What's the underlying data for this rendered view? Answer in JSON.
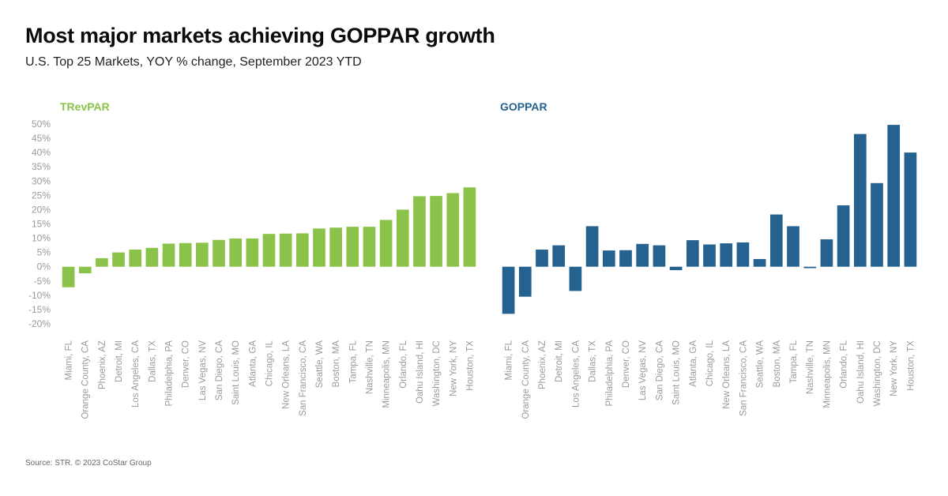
{
  "header": {
    "title": "Most major markets achieving GOPPAR growth",
    "subtitle": "U.S. Top 25 Markets, YOY % change, September 2023 YTD"
  },
  "footer": {
    "source": "Source: STR. © 2023 CoStar Group"
  },
  "colors": {
    "trevpar": "#8bc34a",
    "goppar": "#25628f",
    "axis_text": "#9a9a9a"
  },
  "chart_data": [
    {
      "type": "bar",
      "title": "TRevPAR",
      "ylim": [
        -20,
        50
      ],
      "yticks": [
        "50%",
        "45%",
        "40%",
        "35%",
        "30%",
        "25%",
        "20%",
        "15%",
        "10%",
        "5%",
        "0%",
        "-5%",
        "-10%",
        "-15%",
        "-20%"
      ],
      "grid": false,
      "categories": [
        "Miami, FL",
        "Orange County, CA",
        "Phoenix, AZ",
        "Detroit, MI",
        "Los Angeles, CA",
        "Dallas, TX",
        "Philadelphia, PA",
        "Denver, CO",
        "Las Vegas, NV",
        "San Diego, CA",
        "Saint Louis, MO",
        "Atlanta, GA",
        "Chicago, IL",
        "New Orleans, LA",
        "San Francisco, CA",
        "Seattle, WA",
        "Boston, MA",
        "Tampa, FL",
        "Nashville, TN",
        "Minneapolis, MN",
        "Orlando, FL",
        "Oahu Island, HI",
        "Washington, DC",
        "New York, NY",
        "Houston, TX"
      ],
      "values": [
        -7.2,
        -2.3,
        3.0,
        5.0,
        6.0,
        6.6,
        8.1,
        8.3,
        8.4,
        9.4,
        9.9,
        9.9,
        11.5,
        11.6,
        11.7,
        13.4,
        13.7,
        14.0,
        14.0,
        16.4,
        20.0,
        24.7,
        24.8,
        25.8,
        27.8
      ]
    },
    {
      "type": "bar",
      "title": "GOPPAR",
      "ylim": [
        -20,
        50
      ],
      "grid": false,
      "categories": [
        "Miami, FL",
        "Orange County, CA",
        "Phoenix, AZ",
        "Detroit, MI",
        "Los Angeles, CA",
        "Dallas, TX",
        "Philadelphia, PA",
        "Denver, CO",
        "Las Vegas, NV",
        "San Diego, CA",
        "Saint Louis, MO",
        "Atlanta, GA",
        "Chicago, IL",
        "New Orleans, LA",
        "San Francisco, CA",
        "Seattle, WA",
        "Boston, MA",
        "Tampa, FL",
        "Nashville, TN",
        "Minneapolis, MN",
        "Orlando, FL",
        "Oahu Island, HI",
        "Washington, DC",
        "New York, NY",
        "Houston, TX"
      ],
      "values": [
        -16.5,
        -10.5,
        6.0,
        7.5,
        -8.5,
        14.2,
        5.7,
        5.8,
        8.0,
        7.5,
        -1.2,
        9.3,
        7.8,
        8.2,
        8.5,
        2.7,
        18.3,
        14.2,
        -0.5,
        9.6,
        21.5,
        46.5,
        29.3,
        49.7,
        40.0
      ]
    }
  ]
}
